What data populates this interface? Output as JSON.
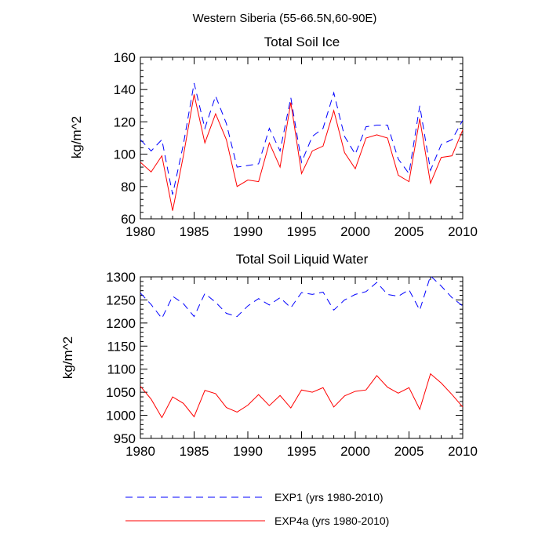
{
  "figure": {
    "title": "Western Siberia (55-66.5N,60-90E)"
  },
  "legend": {
    "entries": [
      {
        "label": "EXP1 (yrs 1980-2010)",
        "color": "#0000ff",
        "dash": "dashed"
      },
      {
        "label": "EXP4a (yrs 1980-2010)",
        "color": "#ff0000",
        "dash": "solid"
      }
    ],
    "placement": "bottom-center"
  },
  "chart_data": [
    {
      "type": "line",
      "title": "Total Soil Ice",
      "xlabel": "",
      "ylabel": "kg/m^2",
      "xlim": [
        1980,
        2010
      ],
      "ylim": [
        60,
        160
      ],
      "xticks": [
        1980,
        1985,
        1990,
        1995,
        2000,
        2005,
        2010
      ],
      "yticks": [
        60,
        80,
        100,
        120,
        140,
        160
      ],
      "x": [
        1980,
        1981,
        1982,
        1983,
        1984,
        1985,
        1986,
        1987,
        1988,
        1989,
        1990,
        1991,
        1992,
        1993,
        1994,
        1995,
        1996,
        1997,
        1998,
        1999,
        2000,
        2001,
        2002,
        2003,
        2004,
        2005,
        2006,
        2007,
        2008,
        2009,
        2010
      ],
      "series": [
        {
          "name": "EXP1 (yrs 1980-2010)",
          "color": "#0000ff",
          "dash": "dashed",
          "values": [
            109,
            102,
            109,
            75,
            106,
            144,
            116,
            136,
            119,
            92,
            93,
            94,
            116,
            102,
            135,
            95,
            111,
            116,
            138,
            111,
            100,
            117,
            118,
            118,
            97,
            88,
            130,
            90,
            106,
            109,
            121
          ]
        },
        {
          "name": "EXP4a (yrs 1980-2010)",
          "color": "#ff0000",
          "dash": "solid",
          "values": [
            95,
            89,
            99,
            65,
            99,
            137,
            107,
            125,
            109,
            80,
            84,
            83,
            107,
            92,
            132,
            88,
            102,
            105,
            127,
            101,
            91,
            110,
            112,
            110,
            87,
            83,
            122,
            82,
            98,
            99,
            115
          ]
        }
      ],
      "grid": false
    },
    {
      "type": "line",
      "title": "Total Soil Liquid Water",
      "xlabel": "",
      "ylabel": "kg/m^2",
      "xlim": [
        1980,
        2010
      ],
      "ylim": [
        950,
        1300
      ],
      "xticks": [
        1980,
        1985,
        1990,
        1995,
        2000,
        2005,
        2010
      ],
      "yticks": [
        950,
        1000,
        1050,
        1100,
        1150,
        1200,
        1250,
        1300
      ],
      "x": [
        1980,
        1981,
        1982,
        1983,
        1984,
        1985,
        1986,
        1987,
        1988,
        1989,
        1990,
        1991,
        1992,
        1993,
        1994,
        1995,
        1996,
        1997,
        1998,
        1999,
        2000,
        2001,
        2002,
        2003,
        2004,
        2005,
        2006,
        2007,
        2008,
        2009,
        2010
      ],
      "series": [
        {
          "name": "EXP1 (yrs 1980-2010)",
          "color": "#0000ff",
          "dash": "dashed",
          "values": [
            1265,
            1240,
            1210,
            1258,
            1242,
            1214,
            1264,
            1245,
            1221,
            1214,
            1237,
            1253,
            1239,
            1255,
            1233,
            1266,
            1262,
            1267,
            1228,
            1250,
            1262,
            1268,
            1288,
            1262,
            1258,
            1272,
            1228,
            1302,
            1280,
            1255,
            1237
          ]
        },
        {
          "name": "EXP4a (yrs 1980-2010)",
          "color": "#ff0000",
          "dash": "solid",
          "values": [
            1063,
            1035,
            995,
            1040,
            1026,
            997,
            1054,
            1047,
            1017,
            1007,
            1022,
            1045,
            1021,
            1043,
            1016,
            1055,
            1050,
            1060,
            1018,
            1042,
            1052,
            1055,
            1086,
            1061,
            1048,
            1060,
            1013,
            1090,
            1070,
            1045,
            1018
          ]
        }
      ],
      "grid": false
    }
  ]
}
